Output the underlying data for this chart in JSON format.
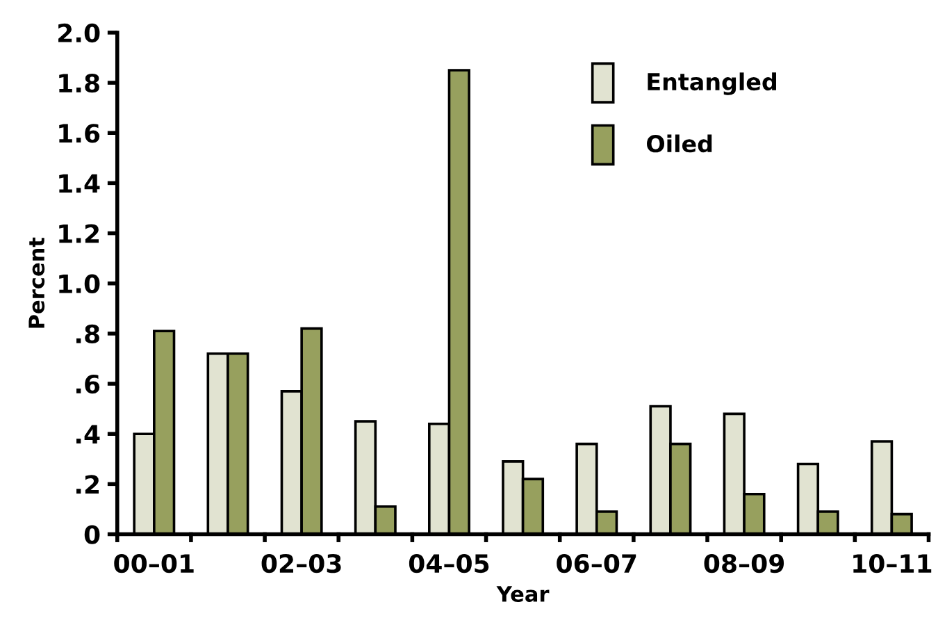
{
  "chart_data": {
    "type": "bar",
    "xlabel": "Year",
    "ylabel": "Percent",
    "categories": [
      "00–01",
      null,
      "02–03",
      null,
      "04–05",
      null,
      "06–07",
      null,
      "08–09",
      null,
      "10–11"
    ],
    "series": [
      {
        "name": "Entangled",
        "color": "#e1e3d1",
        "values": [
          0.4,
          0.72,
          0.57,
          0.45,
          0.44,
          0.29,
          0.36,
          0.51,
          0.48,
          0.28,
          0.37
        ]
      },
      {
        "name": "Oiled",
        "color": "#97a05e",
        "values": [
          0.81,
          0.72,
          0.82,
          0.11,
          1.85,
          0.22,
          0.09,
          0.36,
          0.16,
          0.09,
          0.08
        ]
      }
    ],
    "ylim": [
      0,
      2.0
    ],
    "yticks": [
      {
        "value": 0,
        "label": "0"
      },
      {
        "value": 0.2,
        "label": ".2"
      },
      {
        "value": 0.4,
        "label": ".4"
      },
      {
        "value": 0.6,
        "label": ".6"
      },
      {
        "value": 0.8,
        "label": ".8"
      },
      {
        "value": 1.0,
        "label": "1.0"
      },
      {
        "value": 1.2,
        "label": "1.2"
      },
      {
        "value": 1.4,
        "label": "1.4"
      },
      {
        "value": 1.6,
        "label": "1.6"
      },
      {
        "value": 1.8,
        "label": "1.8"
      },
      {
        "value": 2.0,
        "label": "2.0"
      }
    ],
    "grid": false,
    "legend": "top right"
  }
}
